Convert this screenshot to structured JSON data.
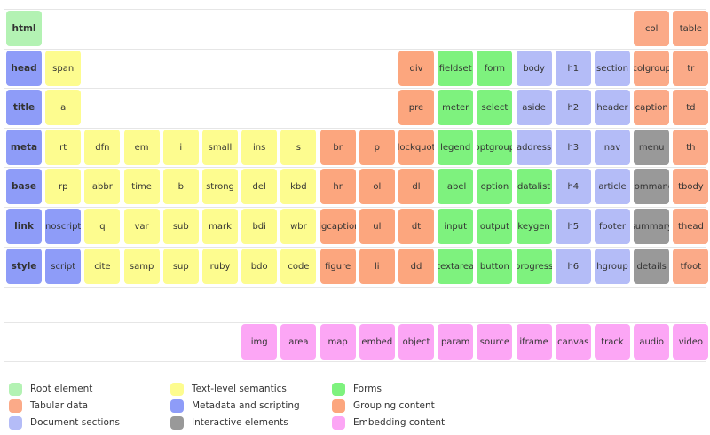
{
  "categories": {
    "root": {
      "label": "Root element",
      "color": "#b3f2b3"
    },
    "tabular": {
      "label": "Tabular data",
      "color": "#fbaa88"
    },
    "sections": {
      "label": "Document sections",
      "color": "#b4bcf7"
    },
    "text": {
      "label": "Text-level semantics",
      "color": "#fdfc8f"
    },
    "metadata": {
      "label": "Metadata and scripting",
      "color": "#8e9cf8"
    },
    "interactive": {
      "label": "Interactive elements",
      "color": "#999999"
    },
    "forms": {
      "label": "Forms",
      "color": "#7ef27e"
    },
    "grouping": {
      "label": "Grouping content",
      "color": "#fca67e"
    },
    "embedding": {
      "label": "Embedding content",
      "color": "#fca6f5"
    }
  },
  "legend": [
    [
      "root",
      "tabular",
      "sections"
    ],
    [
      "text",
      "metadata",
      "interactive"
    ],
    [
      "forms",
      "grouping",
      "embedding"
    ]
  ],
  "elements": [
    {
      "tag": "html",
      "cat": "root",
      "row": 0,
      "col": 0,
      "bold": true
    },
    {
      "tag": "col",
      "cat": "tabular",
      "row": 0,
      "col": 16
    },
    {
      "tag": "table",
      "cat": "tabular",
      "row": 0,
      "col": 17
    },
    {
      "tag": "head",
      "cat": "metadata",
      "row": 1,
      "col": 0,
      "bold": true
    },
    {
      "tag": "span",
      "cat": "text",
      "row": 1,
      "col": 1
    },
    {
      "tag": "div",
      "cat": "grouping",
      "row": 1,
      "col": 10
    },
    {
      "tag": "fieldset",
      "cat": "forms",
      "row": 1,
      "col": 11
    },
    {
      "tag": "form",
      "cat": "forms",
      "row": 1,
      "col": 12
    },
    {
      "tag": "body",
      "cat": "sections",
      "row": 1,
      "col": 13
    },
    {
      "tag": "h1",
      "cat": "sections",
      "row": 1,
      "col": 14
    },
    {
      "tag": "section",
      "cat": "sections",
      "row": 1,
      "col": 15
    },
    {
      "tag": "colgroup",
      "cat": "tabular",
      "row": 1,
      "col": 16
    },
    {
      "tag": "tr",
      "cat": "tabular",
      "row": 1,
      "col": 17
    },
    {
      "tag": "title",
      "cat": "metadata",
      "row": 2,
      "col": 0,
      "bold": true
    },
    {
      "tag": "a",
      "cat": "text",
      "row": 2,
      "col": 1
    },
    {
      "tag": "pre",
      "cat": "grouping",
      "row": 2,
      "col": 10
    },
    {
      "tag": "meter",
      "cat": "forms",
      "row": 2,
      "col": 11
    },
    {
      "tag": "select",
      "cat": "forms",
      "row": 2,
      "col": 12
    },
    {
      "tag": "aside",
      "cat": "sections",
      "row": 2,
      "col": 13
    },
    {
      "tag": "h2",
      "cat": "sections",
      "row": 2,
      "col": 14
    },
    {
      "tag": "header",
      "cat": "sections",
      "row": 2,
      "col": 15
    },
    {
      "tag": "caption",
      "cat": "tabular",
      "row": 2,
      "col": 16
    },
    {
      "tag": "td",
      "cat": "tabular",
      "row": 2,
      "col": 17
    },
    {
      "tag": "meta",
      "cat": "metadata",
      "row": 3,
      "col": 0,
      "bold": true
    },
    {
      "tag": "rt",
      "cat": "text",
      "row": 3,
      "col": 1
    },
    {
      "tag": "dfn",
      "cat": "text",
      "row": 3,
      "col": 2
    },
    {
      "tag": "em",
      "cat": "text",
      "row": 3,
      "col": 3
    },
    {
      "tag": "i",
      "cat": "text",
      "row": 3,
      "col": 4
    },
    {
      "tag": "small",
      "cat": "text",
      "row": 3,
      "col": 5
    },
    {
      "tag": "ins",
      "cat": "text",
      "row": 3,
      "col": 6
    },
    {
      "tag": "s",
      "cat": "text",
      "row": 3,
      "col": 7
    },
    {
      "tag": "br",
      "cat": "grouping",
      "row": 3,
      "col": 8
    },
    {
      "tag": "p",
      "cat": "grouping",
      "row": 3,
      "col": 9
    },
    {
      "tag": "blockquote",
      "cat": "grouping",
      "row": 3,
      "col": 10
    },
    {
      "tag": "legend",
      "cat": "forms",
      "row": 3,
      "col": 11
    },
    {
      "tag": "optgroup",
      "cat": "forms",
      "row": 3,
      "col": 12
    },
    {
      "tag": "address",
      "cat": "sections",
      "row": 3,
      "col": 13
    },
    {
      "tag": "h3",
      "cat": "sections",
      "row": 3,
      "col": 14
    },
    {
      "tag": "nav",
      "cat": "sections",
      "row": 3,
      "col": 15
    },
    {
      "tag": "menu",
      "cat": "interactive",
      "row": 3,
      "col": 16
    },
    {
      "tag": "th",
      "cat": "tabular",
      "row": 3,
      "col": 17
    },
    {
      "tag": "base",
      "cat": "metadata",
      "row": 4,
      "col": 0,
      "bold": true
    },
    {
      "tag": "rp",
      "cat": "text",
      "row": 4,
      "col": 1
    },
    {
      "tag": "abbr",
      "cat": "text",
      "row": 4,
      "col": 2
    },
    {
      "tag": "time",
      "cat": "text",
      "row": 4,
      "col": 3
    },
    {
      "tag": "b",
      "cat": "text",
      "row": 4,
      "col": 4
    },
    {
      "tag": "strong",
      "cat": "text",
      "row": 4,
      "col": 5
    },
    {
      "tag": "del",
      "cat": "text",
      "row": 4,
      "col": 6
    },
    {
      "tag": "kbd",
      "cat": "text",
      "row": 4,
      "col": 7
    },
    {
      "tag": "hr",
      "cat": "grouping",
      "row": 4,
      "col": 8
    },
    {
      "tag": "ol",
      "cat": "grouping",
      "row": 4,
      "col": 9
    },
    {
      "tag": "dl",
      "cat": "grouping",
      "row": 4,
      "col": 10
    },
    {
      "tag": "label",
      "cat": "forms",
      "row": 4,
      "col": 11
    },
    {
      "tag": "option",
      "cat": "forms",
      "row": 4,
      "col": 12
    },
    {
      "tag": "datalist",
      "cat": "forms",
      "row": 4,
      "col": 13
    },
    {
      "tag": "h4",
      "cat": "sections",
      "row": 4,
      "col": 14
    },
    {
      "tag": "article",
      "cat": "sections",
      "row": 4,
      "col": 15
    },
    {
      "tag": "command",
      "cat": "interactive",
      "row": 4,
      "col": 16
    },
    {
      "tag": "tbody",
      "cat": "tabular",
      "row": 4,
      "col": 17
    },
    {
      "tag": "link",
      "cat": "metadata",
      "row": 5,
      "col": 0,
      "bold": true
    },
    {
      "tag": "noscript",
      "cat": "metadata",
      "row": 5,
      "col": 1
    },
    {
      "tag": "q",
      "cat": "text",
      "row": 5,
      "col": 2
    },
    {
      "tag": "var",
      "cat": "text",
      "row": 5,
      "col": 3
    },
    {
      "tag": "sub",
      "cat": "text",
      "row": 5,
      "col": 4
    },
    {
      "tag": "mark",
      "cat": "text",
      "row": 5,
      "col": 5
    },
    {
      "tag": "bdi",
      "cat": "text",
      "row": 5,
      "col": 6
    },
    {
      "tag": "wbr",
      "cat": "text",
      "row": 5,
      "col": 7
    },
    {
      "tag": "figcaption",
      "cat": "grouping",
      "row": 5,
      "col": 8
    },
    {
      "tag": "ul",
      "cat": "grouping",
      "row": 5,
      "col": 9
    },
    {
      "tag": "dt",
      "cat": "grouping",
      "row": 5,
      "col": 10
    },
    {
      "tag": "input",
      "cat": "forms",
      "row": 5,
      "col": 11
    },
    {
      "tag": "output",
      "cat": "forms",
      "row": 5,
      "col": 12
    },
    {
      "tag": "keygen",
      "cat": "forms",
      "row": 5,
      "col": 13
    },
    {
      "tag": "h5",
      "cat": "sections",
      "row": 5,
      "col": 14
    },
    {
      "tag": "footer",
      "cat": "sections",
      "row": 5,
      "col": 15
    },
    {
      "tag": "summary",
      "cat": "interactive",
      "row": 5,
      "col": 16
    },
    {
      "tag": "thead",
      "cat": "tabular",
      "row": 5,
      "col": 17
    },
    {
      "tag": "style",
      "cat": "metadata",
      "row": 6,
      "col": 0,
      "bold": true
    },
    {
      "tag": "script",
      "cat": "metadata",
      "row": 6,
      "col": 1
    },
    {
      "tag": "cite",
      "cat": "text",
      "row": 6,
      "col": 2
    },
    {
      "tag": "samp",
      "cat": "text",
      "row": 6,
      "col": 3
    },
    {
      "tag": "sup",
      "cat": "text",
      "row": 6,
      "col": 4
    },
    {
      "tag": "ruby",
      "cat": "text",
      "row": 6,
      "col": 5
    },
    {
      "tag": "bdo",
      "cat": "text",
      "row": 6,
      "col": 6
    },
    {
      "tag": "code",
      "cat": "text",
      "row": 6,
      "col": 7
    },
    {
      "tag": "figure",
      "cat": "grouping",
      "row": 6,
      "col": 8
    },
    {
      "tag": "li",
      "cat": "grouping",
      "row": 6,
      "col": 9
    },
    {
      "tag": "dd",
      "cat": "grouping",
      "row": 6,
      "col": 10
    },
    {
      "tag": "textarea",
      "cat": "forms",
      "row": 6,
      "col": 11
    },
    {
      "tag": "button",
      "cat": "forms",
      "row": 6,
      "col": 12
    },
    {
      "tag": "progress",
      "cat": "forms",
      "row": 6,
      "col": 13
    },
    {
      "tag": "h6",
      "cat": "sections",
      "row": 6,
      "col": 14
    },
    {
      "tag": "hgroup",
      "cat": "sections",
      "row": 6,
      "col": 15
    },
    {
      "tag": "details",
      "cat": "interactive",
      "row": 6,
      "col": 16
    },
    {
      "tag": "tfoot",
      "cat": "tabular",
      "row": 6,
      "col": 17
    },
    {
      "tag": "img",
      "cat": "embedding",
      "row": 7,
      "col": 6
    },
    {
      "tag": "area",
      "cat": "embedding",
      "row": 7,
      "col": 7
    },
    {
      "tag": "map",
      "cat": "embedding",
      "row": 7,
      "col": 8
    },
    {
      "tag": "embed",
      "cat": "embedding",
      "row": 7,
      "col": 9
    },
    {
      "tag": "object",
      "cat": "embedding",
      "row": 7,
      "col": 10
    },
    {
      "tag": "param",
      "cat": "embedding",
      "row": 7,
      "col": 11
    },
    {
      "tag": "source",
      "cat": "embedding",
      "row": 7,
      "col": 12
    },
    {
      "tag": "iframe",
      "cat": "embedding",
      "row": 7,
      "col": 13
    },
    {
      "tag": "canvas",
      "cat": "embedding",
      "row": 7,
      "col": 14
    },
    {
      "tag": "track",
      "cat": "embedding",
      "row": 7,
      "col": 15
    },
    {
      "tag": "audio",
      "cat": "embedding",
      "row": 7,
      "col": 16
    },
    {
      "tag": "video",
      "cat": "embedding",
      "row": 7,
      "col": 17
    }
  ]
}
